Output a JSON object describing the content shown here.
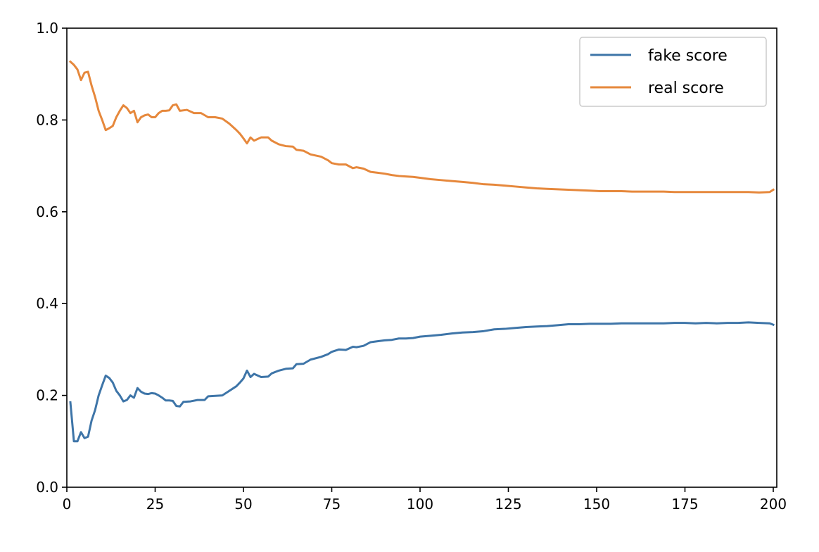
{
  "chart_data": {
    "type": "line",
    "title": "",
    "xlabel": "",
    "ylabel": "",
    "xlim": [
      0,
      201
    ],
    "ylim": [
      0.0,
      1.0
    ],
    "xticks": [
      0,
      25,
      50,
      75,
      100,
      125,
      150,
      175,
      200
    ],
    "xtick_labels": [
      "0",
      "25",
      "50",
      "75",
      "100",
      "125",
      "150",
      "175",
      "200"
    ],
    "yticks": [
      0.0,
      0.2,
      0.4,
      0.6,
      0.8,
      1.0
    ],
    "ytick_labels": [
      "0.0",
      "0.2",
      "0.4",
      "0.6",
      "0.8",
      "1.0"
    ],
    "grid": false,
    "legend": {
      "position": "top-right"
    },
    "series": [
      {
        "name": "fake score",
        "color": "#3e75a8",
        "points": [
          [
            1,
            0.185
          ],
          [
            2,
            0.1
          ],
          [
            3,
            0.1
          ],
          [
            4,
            0.12
          ],
          [
            5,
            0.107
          ],
          [
            6,
            0.11
          ],
          [
            7,
            0.145
          ],
          [
            8,
            0.168
          ],
          [
            9,
            0.2
          ],
          [
            10,
            0.222
          ],
          [
            11,
            0.243
          ],
          [
            12,
            0.238
          ],
          [
            13,
            0.228
          ],
          [
            14,
            0.21
          ],
          [
            15,
            0.2
          ],
          [
            16,
            0.187
          ],
          [
            17,
            0.19
          ],
          [
            18,
            0.2
          ],
          [
            19,
            0.195
          ],
          [
            20,
            0.216
          ],
          [
            21,
            0.208
          ],
          [
            22,
            0.204
          ],
          [
            23,
            0.203
          ],
          [
            24,
            0.205
          ],
          [
            25,
            0.204
          ],
          [
            26,
            0.2
          ],
          [
            27,
            0.195
          ],
          [
            28,
            0.189
          ],
          [
            29,
            0.189
          ],
          [
            30,
            0.188
          ],
          [
            31,
            0.177
          ],
          [
            32,
            0.176
          ],
          [
            33,
            0.186
          ],
          [
            35,
            0.187
          ],
          [
            37,
            0.19
          ],
          [
            39,
            0.19
          ],
          [
            40,
            0.198
          ],
          [
            42,
            0.199
          ],
          [
            44,
            0.2
          ],
          [
            46,
            0.21
          ],
          [
            48,
            0.22
          ],
          [
            49,
            0.228
          ],
          [
            50,
            0.237
          ],
          [
            51,
            0.254
          ],
          [
            52,
            0.24
          ],
          [
            53,
            0.247
          ],
          [
            55,
            0.24
          ],
          [
            57,
            0.241
          ],
          [
            58,
            0.248
          ],
          [
            60,
            0.254
          ],
          [
            62,
            0.258
          ],
          [
            64,
            0.259
          ],
          [
            65,
            0.268
          ],
          [
            67,
            0.269
          ],
          [
            69,
            0.278
          ],
          [
            72,
            0.284
          ],
          [
            74,
            0.29
          ],
          [
            75,
            0.295
          ],
          [
            77,
            0.3
          ],
          [
            79,
            0.299
          ],
          [
            81,
            0.306
          ],
          [
            82,
            0.305
          ],
          [
            84,
            0.308
          ],
          [
            86,
            0.316
          ],
          [
            88,
            0.318
          ],
          [
            90,
            0.32
          ],
          [
            92,
            0.321
          ],
          [
            94,
            0.324
          ],
          [
            96,
            0.324
          ],
          [
            98,
            0.325
          ],
          [
            100,
            0.328
          ],
          [
            103,
            0.33
          ],
          [
            106,
            0.332
          ],
          [
            109,
            0.335
          ],
          [
            112,
            0.337
          ],
          [
            115,
            0.338
          ],
          [
            118,
            0.34
          ],
          [
            121,
            0.344
          ],
          [
            124,
            0.345
          ],
          [
            127,
            0.347
          ],
          [
            130,
            0.349
          ],
          [
            133,
            0.35
          ],
          [
            136,
            0.351
          ],
          [
            139,
            0.353
          ],
          [
            142,
            0.355
          ],
          [
            145,
            0.355
          ],
          [
            148,
            0.356
          ],
          [
            151,
            0.356
          ],
          [
            154,
            0.356
          ],
          [
            157,
            0.357
          ],
          [
            160,
            0.357
          ],
          [
            163,
            0.357
          ],
          [
            166,
            0.357
          ],
          [
            169,
            0.357
          ],
          [
            172,
            0.358
          ],
          [
            175,
            0.358
          ],
          [
            178,
            0.357
          ],
          [
            181,
            0.358
          ],
          [
            184,
            0.357
          ],
          [
            187,
            0.358
          ],
          [
            190,
            0.358
          ],
          [
            193,
            0.359
          ],
          [
            196,
            0.358
          ],
          [
            199,
            0.357
          ],
          [
            200,
            0.354
          ]
        ]
      },
      {
        "name": "real score",
        "color": "#e6883c",
        "points": [
          [
            1,
            0.927
          ],
          [
            2,
            0.92
          ],
          [
            3,
            0.91
          ],
          [
            4,
            0.887
          ],
          [
            5,
            0.903
          ],
          [
            6,
            0.905
          ],
          [
            7,
            0.875
          ],
          [
            8,
            0.85
          ],
          [
            9,
            0.82
          ],
          [
            10,
            0.8
          ],
          [
            11,
            0.778
          ],
          [
            12,
            0.782
          ],
          [
            13,
            0.787
          ],
          [
            14,
            0.806
          ],
          [
            15,
            0.82
          ],
          [
            16,
            0.832
          ],
          [
            17,
            0.826
          ],
          [
            18,
            0.815
          ],
          [
            19,
            0.82
          ],
          [
            20,
            0.795
          ],
          [
            21,
            0.806
          ],
          [
            22,
            0.81
          ],
          [
            23,
            0.812
          ],
          [
            24,
            0.806
          ],
          [
            25,
            0.806
          ],
          [
            26,
            0.815
          ],
          [
            27,
            0.82
          ],
          [
            28,
            0.82
          ],
          [
            29,
            0.821
          ],
          [
            30,
            0.832
          ],
          [
            31,
            0.834
          ],
          [
            32,
            0.82
          ],
          [
            34,
            0.822
          ],
          [
            36,
            0.815
          ],
          [
            38,
            0.815
          ],
          [
            40,
            0.806
          ],
          [
            42,
            0.806
          ],
          [
            44,
            0.803
          ],
          [
            46,
            0.792
          ],
          [
            48,
            0.778
          ],
          [
            49,
            0.77
          ],
          [
            50,
            0.76
          ],
          [
            51,
            0.749
          ],
          [
            52,
            0.762
          ],
          [
            53,
            0.755
          ],
          [
            55,
            0.762
          ],
          [
            57,
            0.762
          ],
          [
            58,
            0.755
          ],
          [
            60,
            0.747
          ],
          [
            62,
            0.743
          ],
          [
            64,
            0.742
          ],
          [
            65,
            0.735
          ],
          [
            67,
            0.733
          ],
          [
            69,
            0.725
          ],
          [
            72,
            0.72
          ],
          [
            74,
            0.712
          ],
          [
            75,
            0.706
          ],
          [
            77,
            0.703
          ],
          [
            79,
            0.703
          ],
          [
            81,
            0.695
          ],
          [
            82,
            0.697
          ],
          [
            84,
            0.694
          ],
          [
            86,
            0.687
          ],
          [
            88,
            0.685
          ],
          [
            90,
            0.683
          ],
          [
            92,
            0.68
          ],
          [
            94,
            0.678
          ],
          [
            96,
            0.677
          ],
          [
            98,
            0.676
          ],
          [
            100,
            0.674
          ],
          [
            103,
            0.671
          ],
          [
            106,
            0.669
          ],
          [
            109,
            0.667
          ],
          [
            112,
            0.665
          ],
          [
            115,
            0.663
          ],
          [
            118,
            0.66
          ],
          [
            121,
            0.659
          ],
          [
            124,
            0.657
          ],
          [
            127,
            0.655
          ],
          [
            130,
            0.653
          ],
          [
            133,
            0.651
          ],
          [
            136,
            0.65
          ],
          [
            139,
            0.649
          ],
          [
            142,
            0.648
          ],
          [
            145,
            0.647
          ],
          [
            148,
            0.646
          ],
          [
            151,
            0.645
          ],
          [
            154,
            0.645
          ],
          [
            157,
            0.645
          ],
          [
            160,
            0.644
          ],
          [
            163,
            0.644
          ],
          [
            166,
            0.644
          ],
          [
            169,
            0.644
          ],
          [
            172,
            0.643
          ],
          [
            175,
            0.643
          ],
          [
            178,
            0.643
          ],
          [
            181,
            0.643
          ],
          [
            184,
            0.643
          ],
          [
            187,
            0.643
          ],
          [
            190,
            0.643
          ],
          [
            193,
            0.643
          ],
          [
            196,
            0.642
          ],
          [
            199,
            0.643
          ],
          [
            200,
            0.648
          ]
        ]
      }
    ]
  }
}
